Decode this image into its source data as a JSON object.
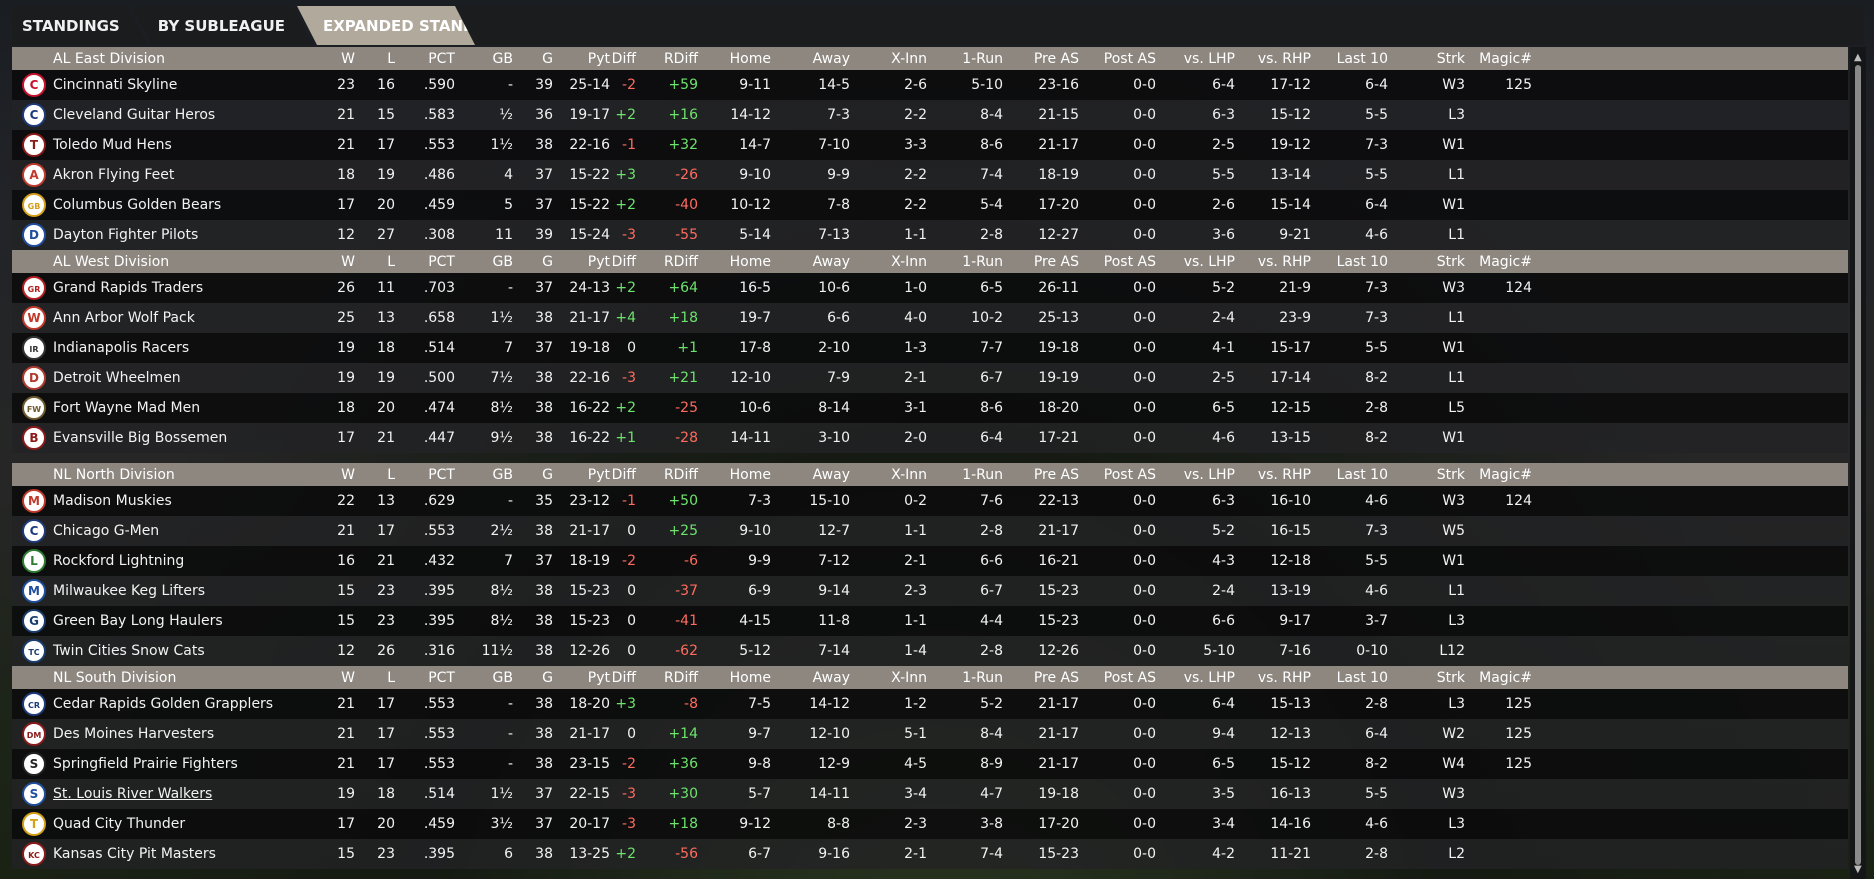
{
  "tabs": [
    {
      "label": "STANDINGS",
      "active": false
    },
    {
      "label": "BY SUBLEAGUE",
      "active": false
    },
    {
      "label": "EXPANDED STANDINGS",
      "active": true
    }
  ],
  "columns": [
    "W",
    "L",
    "PCT",
    "GB",
    "G",
    "Pyt",
    "Diff",
    "RDiff",
    "Home",
    "Away",
    "X-Inn",
    "1-Run",
    "Pre AS",
    "Post AS",
    "vs. LHP",
    "vs. RHP",
    "Last 10",
    "Strk",
    "Magic#"
  ],
  "colors": {
    "positive": "#6ce46c",
    "negative": "#ff6b5e",
    "header_bg": "#8d8780",
    "active_tab": "#b0a99c"
  },
  "divisions": [
    {
      "name": "AL East Division",
      "teams": [
        {
          "name": "Cincinnati Skyline",
          "logo": "C",
          "logo_color": "#c8102e",
          "vals": [
            "23",
            "16",
            ".590",
            "-",
            "39",
            "25-14",
            "-2",
            "+59",
            "9-11",
            "14-5",
            "2-6",
            "5-10",
            "23-16",
            "0-0",
            "6-4",
            "17-12",
            "6-4",
            "W3",
            "125"
          ]
        },
        {
          "name": "Cleveland Guitar Heros",
          "logo": "C",
          "logo_color": "#1e3a7a",
          "vals": [
            "21",
            "15",
            ".583",
            "½",
            "36",
            "19-17",
            "+2",
            "+16",
            "14-12",
            "7-3",
            "2-2",
            "8-4",
            "21-15",
            "0-0",
            "6-3",
            "15-12",
            "5-5",
            "L3",
            ""
          ]
        },
        {
          "name": "Toledo  Mud Hens",
          "logo": "T",
          "logo_color": "#8b1a1a",
          "vals": [
            "21",
            "17",
            ".553",
            "1½",
            "38",
            "22-16",
            "-1",
            "+32",
            "14-7",
            "7-10",
            "3-3",
            "8-6",
            "21-17",
            "0-0",
            "2-5",
            "19-12",
            "7-3",
            "W1",
            ""
          ]
        },
        {
          "name": "Akron  Flying Feet",
          "logo": "A",
          "logo_color": "#c0392b",
          "vals": [
            "18",
            "19",
            ".486",
            "4",
            "37",
            "15-22",
            "+3",
            "-26",
            "9-10",
            "9-9",
            "2-2",
            "7-4",
            "18-19",
            "0-0",
            "5-5",
            "13-14",
            "5-5",
            "L1",
            ""
          ]
        },
        {
          "name": "Columbus Golden Bears",
          "logo": "GB",
          "logo_color": "#d4a017",
          "vals": [
            "17",
            "20",
            ".459",
            "5",
            "37",
            "15-22",
            "+2",
            "-40",
            "10-12",
            "7-8",
            "2-2",
            "5-4",
            "17-20",
            "0-0",
            "2-6",
            "15-14",
            "6-4",
            "W1",
            ""
          ]
        },
        {
          "name": "Dayton Fighter Pilots",
          "logo": "D",
          "logo_color": "#1f4e9c",
          "vals": [
            "12",
            "27",
            ".308",
            "11",
            "39",
            "15-24",
            "-3",
            "-55",
            "5-14",
            "7-13",
            "1-1",
            "2-8",
            "12-27",
            "0-0",
            "3-6",
            "9-21",
            "4-6",
            "L1",
            ""
          ]
        }
      ]
    },
    {
      "name": "AL West Division",
      "teams": [
        {
          "name": "Grand Rapids Traders",
          "logo": "GR",
          "logo_color": "#b22222",
          "vals": [
            "26",
            "11",
            ".703",
            "-",
            "37",
            "24-13",
            "+2",
            "+64",
            "16-5",
            "10-6",
            "1-0",
            "6-5",
            "26-11",
            "0-0",
            "5-2",
            "21-9",
            "7-3",
            "W3",
            "124"
          ]
        },
        {
          "name": "Ann Arbor Wolf Pack",
          "logo": "W",
          "logo_color": "#c0392b",
          "vals": [
            "25",
            "13",
            ".658",
            "1½",
            "38",
            "21-17",
            "+4",
            "+18",
            "19-7",
            "6-6",
            "4-0",
            "10-2",
            "25-13",
            "0-0",
            "2-4",
            "23-9",
            "7-3",
            "L1",
            ""
          ]
        },
        {
          "name": "Indianapolis Racers",
          "logo": "IR",
          "logo_color": "#333333",
          "vals": [
            "19",
            "18",
            ".514",
            "7",
            "37",
            "19-18",
            "0",
            "+1",
            "17-8",
            "2-10",
            "1-3",
            "7-7",
            "19-18",
            "0-0",
            "4-1",
            "15-17",
            "5-5",
            "W1",
            ""
          ]
        },
        {
          "name": "Detroit Wheelmen",
          "logo": "D",
          "logo_color": "#b03a2e",
          "vals": [
            "19",
            "19",
            ".500",
            "7½",
            "38",
            "22-16",
            "-3",
            "+21",
            "12-10",
            "7-9",
            "2-1",
            "6-7",
            "19-19",
            "0-0",
            "2-5",
            "17-14",
            "8-2",
            "L1",
            ""
          ]
        },
        {
          "name": "Fort Wayne Mad Men",
          "logo": "FW",
          "logo_color": "#6b5a2a",
          "vals": [
            "18",
            "20",
            ".474",
            "8½",
            "38",
            "16-22",
            "+2",
            "-25",
            "10-6",
            "8-14",
            "3-1",
            "8-6",
            "18-20",
            "0-0",
            "6-5",
            "12-15",
            "2-8",
            "L5",
            ""
          ]
        },
        {
          "name": "Evansville Big Bossemen",
          "logo": "B",
          "logo_color": "#8b1a1a",
          "vals": [
            "17",
            "21",
            ".447",
            "9½",
            "38",
            "16-22",
            "+1",
            "-28",
            "14-11",
            "3-10",
            "2-0",
            "6-4",
            "17-21",
            "0-0",
            "4-6",
            "13-15",
            "8-2",
            "W1",
            ""
          ]
        }
      ]
    },
    {
      "name": "NL North Division",
      "teams": [
        {
          "name": "Madison Muskies",
          "logo": "M",
          "logo_color": "#c0392b",
          "vals": [
            "22",
            "13",
            ".629",
            "-",
            "35",
            "23-12",
            "-1",
            "+50",
            "7-3",
            "15-10",
            "0-2",
            "7-6",
            "22-13",
            "0-0",
            "6-3",
            "16-10",
            "4-6",
            "W3",
            "124"
          ]
        },
        {
          "name": "Chicago G-Men",
          "logo": "C",
          "logo_color": "#1e3a7a",
          "vals": [
            "21",
            "17",
            ".553",
            "2½",
            "38",
            "21-17",
            "0",
            "+25",
            "9-10",
            "12-7",
            "1-1",
            "2-8",
            "21-17",
            "0-0",
            "5-2",
            "16-15",
            "7-3",
            "W5",
            ""
          ]
        },
        {
          "name": "Rockford Lightning",
          "logo": "L",
          "logo_color": "#2e7d32",
          "vals": [
            "16",
            "21",
            ".432",
            "7",
            "37",
            "18-19",
            "-2",
            "-6",
            "9-9",
            "7-12",
            "2-1",
            "6-6",
            "16-21",
            "0-0",
            "4-3",
            "12-18",
            "5-5",
            "W1",
            ""
          ]
        },
        {
          "name": "Milwaukee Keg Lifters",
          "logo": "M",
          "logo_color": "#1f4e9c",
          "vals": [
            "15",
            "23",
            ".395",
            "8½",
            "38",
            "15-23",
            "0",
            "-37",
            "6-9",
            "9-14",
            "2-3",
            "6-7",
            "15-23",
            "0-0",
            "2-4",
            "13-19",
            "4-6",
            "L1",
            ""
          ]
        },
        {
          "name": "Green Bay  Long Haulers",
          "logo": "G",
          "logo_color": "#1b3d6e",
          "vals": [
            "15",
            "23",
            ".395",
            "8½",
            "38",
            "15-23",
            "0",
            "-41",
            "4-15",
            "11-8",
            "1-1",
            "4-4",
            "15-23",
            "0-0",
            "6-6",
            "9-17",
            "3-7",
            "L3",
            ""
          ]
        },
        {
          "name": "Twin Cities Snow Cats",
          "logo": "TC",
          "logo_color": "#1b3d6e",
          "vals": [
            "12",
            "26",
            ".316",
            "11½",
            "38",
            "12-26",
            "0",
            "-62",
            "5-12",
            "7-14",
            "1-4",
            "2-8",
            "12-26",
            "0-0",
            "5-10",
            "7-16",
            "0-10",
            "L12",
            ""
          ]
        }
      ]
    },
    {
      "name": "NL South Division",
      "teams": [
        {
          "name": "Cedar Rapids Golden Grapplers",
          "logo": "CR",
          "logo_color": "#1e3a7a",
          "vals": [
            "21",
            "17",
            ".553",
            "-",
            "38",
            "18-20",
            "+3",
            "-8",
            "7-5",
            "14-12",
            "1-2",
            "5-2",
            "21-17",
            "0-0",
            "6-4",
            "15-13",
            "2-8",
            "L3",
            "125"
          ]
        },
        {
          "name": "Des Moines   Harvesters",
          "logo": "DM",
          "logo_color": "#8b1a1a",
          "vals": [
            "21",
            "17",
            ".553",
            "-",
            "38",
            "21-17",
            "0",
            "+14",
            "9-7",
            "12-10",
            "5-1",
            "8-4",
            "21-17",
            "0-0",
            "9-4",
            "12-13",
            "6-4",
            "W2",
            "125"
          ]
        },
        {
          "name": "Springfield Prairie Fighters",
          "logo": "S",
          "logo_color": "#222222",
          "vals": [
            "21",
            "17",
            ".553",
            "-",
            "38",
            "23-15",
            "-2",
            "+36",
            "9-8",
            "12-9",
            "4-5",
            "8-9",
            "21-17",
            "0-0",
            "6-5",
            "15-12",
            "8-2",
            "W4",
            "125"
          ]
        },
        {
          "name": "St. Louis River Walkers",
          "logo": "S",
          "logo_color": "#1f4e9c",
          "link": true,
          "vals": [
            "19",
            "18",
            ".514",
            "1½",
            "37",
            "22-15",
            "-3",
            "+30",
            "5-7",
            "14-11",
            "3-4",
            "4-7",
            "19-18",
            "0-0",
            "3-5",
            "16-13",
            "5-5",
            "W3",
            ""
          ]
        },
        {
          "name": "Quad City Thunder",
          "logo": "T",
          "logo_color": "#d4a017",
          "vals": [
            "17",
            "20",
            ".459",
            "3½",
            "37",
            "20-17",
            "-3",
            "+18",
            "9-12",
            "8-8",
            "2-3",
            "3-8",
            "17-20",
            "0-0",
            "3-4",
            "14-16",
            "4-6",
            "L3",
            ""
          ]
        },
        {
          "name": "Kansas City Pit Masters",
          "logo": "KC",
          "logo_color": "#8b1a1a",
          "vals": [
            "15",
            "23",
            ".395",
            "6",
            "38",
            "13-25",
            "+2",
            "-56",
            "6-7",
            "9-16",
            "2-1",
            "7-4",
            "15-23",
            "0-0",
            "4-2",
            "11-21",
            "2-8",
            "L2",
            ""
          ]
        }
      ]
    }
  ]
}
